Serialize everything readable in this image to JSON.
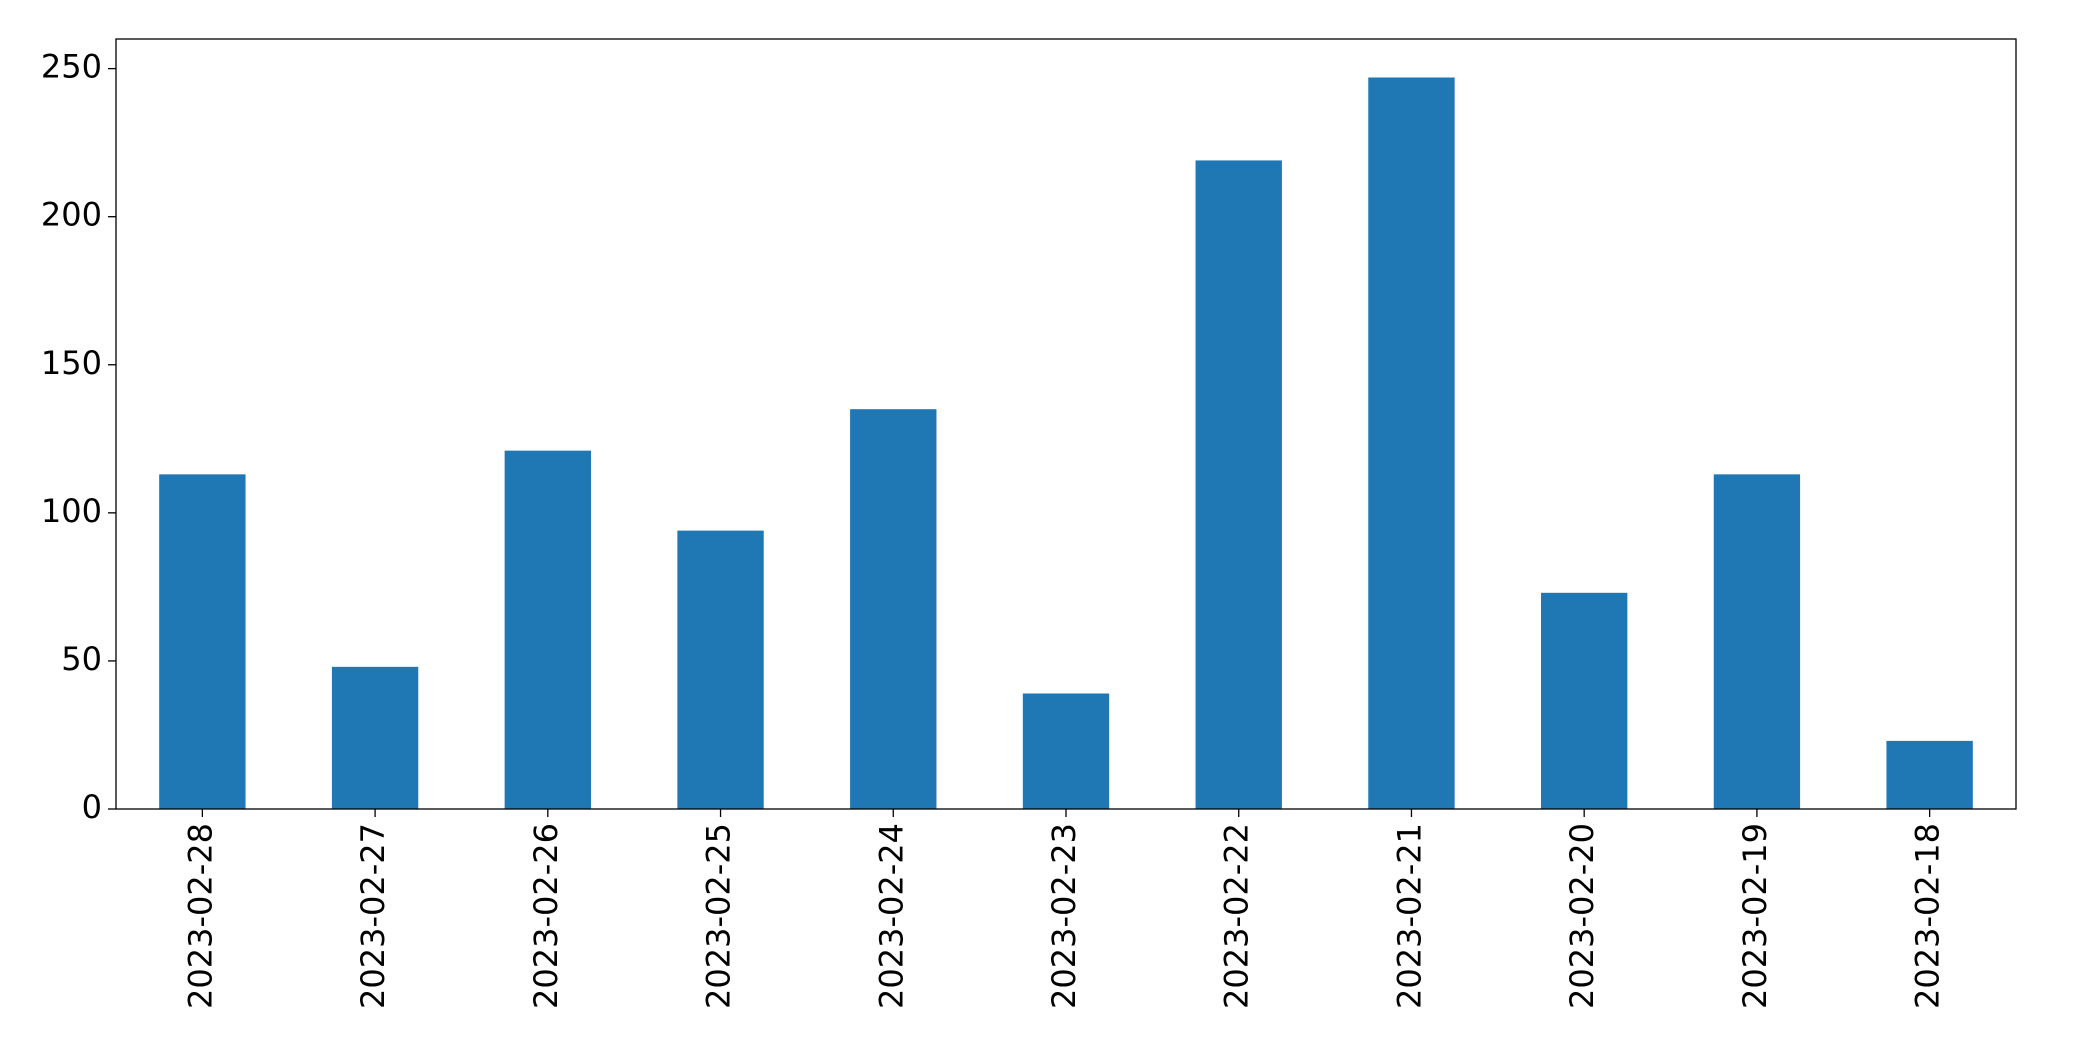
{
  "chart_data": {
    "type": "bar",
    "categories": [
      "2023-02-28",
      "2023-02-27",
      "2023-02-26",
      "2023-02-25",
      "2023-02-24",
      "2023-02-23",
      "2023-02-22",
      "2023-02-21",
      "2023-02-20",
      "2023-02-19",
      "2023-02-18"
    ],
    "values": [
      113,
      48,
      121,
      94,
      135,
      39,
      219,
      247,
      73,
      113,
      23
    ],
    "color": "#1f77b4",
    "ylim": [
      0,
      260
    ],
    "yticks": [
      0,
      50,
      100,
      150,
      200,
      250
    ],
    "grid": false
  }
}
